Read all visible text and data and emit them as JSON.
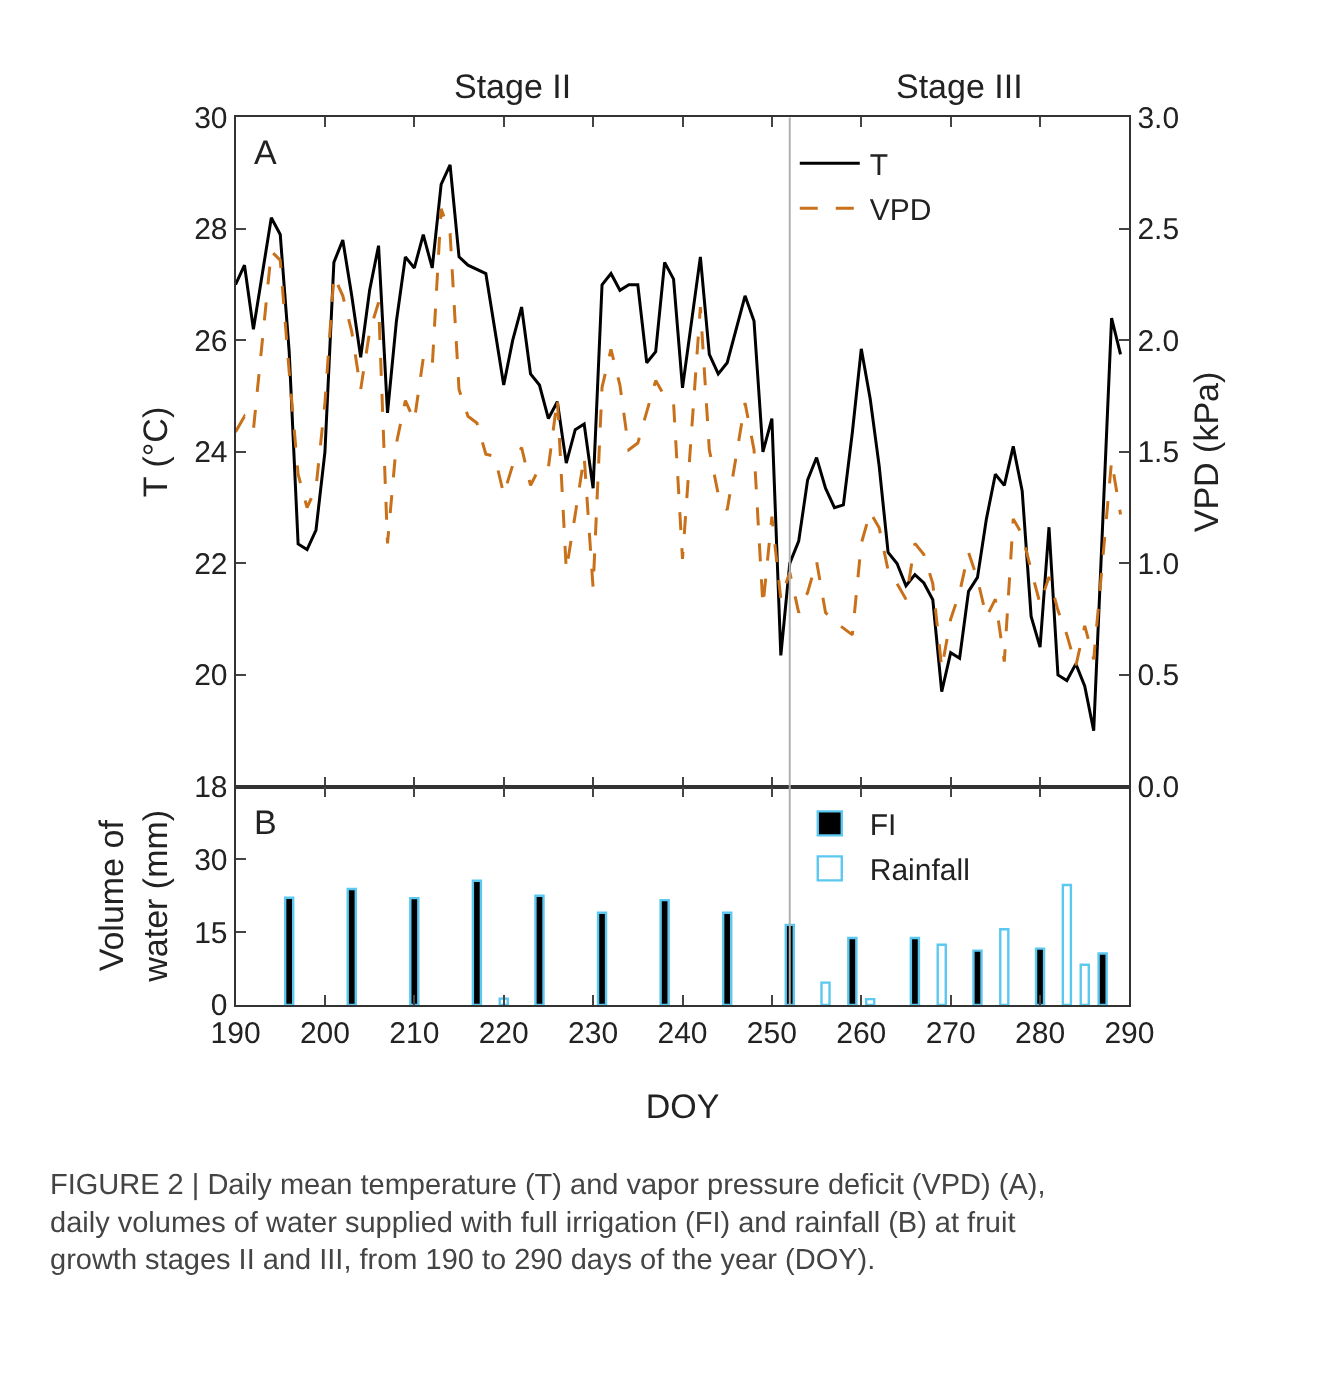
{
  "chart_data": [
    {
      "type": "line",
      "xlim": [
        190,
        290
      ],
      "xticks": [
        190,
        200,
        210,
        220,
        230,
        240,
        250,
        260,
        270,
        280,
        290
      ],
      "ylim": [
        18,
        30
      ],
      "yticks": [
        18,
        20,
        22,
        24,
        26,
        28,
        30
      ],
      "ylabel": "T (°C)",
      "y2lim": [
        0,
        3
      ],
      "y2ticks": [
        {
          "value": 0,
          "label": "0.0"
        },
        {
          "value": 0.5,
          "label": "0.5"
        },
        {
          "value": 1,
          "label": "1.0"
        },
        {
          "value": 1.5,
          "label": "1.5"
        },
        {
          "value": 2,
          "label": "2.0"
        },
        {
          "value": 2.5,
          "label": "2.5"
        },
        {
          "value": 3,
          "label": "3.0"
        }
      ],
      "y2label": "VPD (kPa)",
      "tick_labels": "y",
      "legend": "top right",
      "marker": "none",
      "annotations": [
        "A",
        "Stage II",
        "Stage III"
      ],
      "ref_lines": [
        {
          "axis": "x",
          "value": 252,
          "color": "#b0b0b0"
        }
      ],
      "series": [
        {
          "name": "T",
          "color": "#000000",
          "line_style": "solid",
          "x": [
            190,
            191,
            192,
            194,
            195,
            196,
            197,
            198,
            199,
            200,
            201,
            202,
            203,
            204,
            205,
            206,
            207,
            208,
            209,
            210,
            211,
            212,
            213,
            214,
            215,
            216,
            218,
            220,
            221,
            222,
            223,
            224,
            225,
            226,
            227,
            228,
            229,
            230,
            231,
            232,
            233,
            234,
            235,
            236,
            237,
            238,
            239,
            240,
            242,
            243,
            244,
            245,
            247,
            248,
            249,
            250,
            251,
            252,
            253,
            254,
            255,
            256,
            257,
            258,
            259,
            260,
            261,
            262,
            263,
            264,
            265,
            266,
            267,
            268,
            269,
            270,
            271,
            272,
            273,
            274,
            275,
            276,
            277,
            278,
            279,
            280,
            281,
            282,
            283,
            284,
            285,
            286,
            288,
            289
          ],
          "values": [
            27.0,
            27.35,
            26.2,
            28.2,
            27.9,
            25.8,
            22.35,
            22.25,
            22.6,
            24.0,
            27.4,
            27.8,
            26.8,
            25.7,
            26.9,
            27.7,
            24.7,
            26.35,
            27.5,
            27.3,
            27.9,
            27.3,
            28.8,
            29.15,
            27.5,
            27.35,
            27.2,
            25.2,
            26.0,
            26.6,
            25.4,
            25.2,
            24.6,
            24.9,
            23.8,
            24.4,
            24.5,
            23.35,
            27.0,
            27.2,
            26.9,
            27.0,
            27.0,
            25.6,
            25.8,
            27.4,
            27.1,
            25.15,
            27.5,
            25.75,
            25.4,
            25.6,
            26.8,
            26.35,
            24.0,
            24.6,
            20.35,
            22.0,
            22.4,
            23.5,
            23.9,
            23.35,
            23.0,
            23.05,
            24.35,
            25.85,
            24.95,
            23.75,
            22.2,
            22.0,
            21.6,
            21.8,
            21.65,
            21.35,
            19.7,
            20.4,
            20.3,
            21.5,
            21.75,
            22.8,
            23.6,
            23.4,
            24.1,
            23.3,
            21.05,
            20.5,
            22.65,
            20.0,
            19.9,
            20.2,
            19.8,
            19.0,
            26.4,
            25.75
          ]
        },
        {
          "name": "VPD",
          "color": "#c8711a",
          "line_style": "dashed",
          "axis": "y2",
          "x": [
            190,
            191,
            192,
            194,
            195,
            196,
            197,
            198,
            199,
            200,
            201,
            202,
            203,
            204,
            205,
            206,
            207,
            208,
            209,
            210,
            211,
            212,
            213,
            214,
            215,
            216,
            217,
            218,
            219,
            220,
            221,
            222,
            223,
            224,
            225,
            226,
            227,
            228,
            229,
            230,
            231,
            232,
            233,
            234,
            235,
            237,
            238,
            239,
            240,
            242,
            243,
            244,
            245,
            247,
            248,
            249,
            250,
            251,
            252,
            253,
            254,
            255,
            256,
            257,
            259,
            260,
            261,
            262,
            263,
            264,
            265,
            266,
            267,
            268,
            269,
            270,
            271,
            272,
            273,
            274,
            275,
            276,
            277,
            278,
            279,
            280,
            281,
            282,
            283,
            284,
            285,
            286,
            288,
            289
          ],
          "values": [
            1.59,
            1.66,
            1.6,
            2.4,
            2.36,
            1.86,
            1.4,
            1.25,
            1.34,
            1.72,
            2.29,
            2.2,
            2.04,
            1.78,
            2.04,
            2.17,
            1.09,
            1.54,
            1.73,
            1.64,
            1.92,
            1.88,
            2.59,
            2.48,
            1.78,
            1.66,
            1.63,
            1.49,
            1.48,
            1.31,
            1.44,
            1.52,
            1.35,
            1.43,
            1.43,
            1.74,
            0.97,
            1.22,
            1.48,
            0.89,
            1.79,
            1.96,
            1.8,
            1.51,
            1.54,
            1.82,
            1.75,
            1.72,
            1.02,
            2.15,
            1.51,
            1.31,
            1.24,
            1.72,
            1.51,
            0.81,
            1.21,
            0.84,
            0.96,
            0.78,
            0.87,
            1.01,
            0.78,
            0.74,
            0.68,
            1.09,
            1.23,
            1.16,
            0.97,
            0.91,
            0.84,
            1.09,
            1.04,
            0.91,
            0.53,
            0.75,
            0.87,
            1.05,
            0.93,
            0.76,
            0.84,
            0.56,
            1.2,
            1.13,
            0.97,
            0.82,
            0.94,
            0.79,
            0.68,
            0.54,
            0.72,
            0.57,
            1.46,
            1.22
          ]
        }
      ]
    },
    {
      "type": "bar",
      "xlim": [
        190,
        290
      ],
      "xticks": [
        190,
        200,
        210,
        220,
        230,
        240,
        250,
        260,
        270,
        280,
        290
      ],
      "ylim": [
        0,
        45
      ],
      "yticks": [
        0,
        15,
        30
      ],
      "xlabel": "DOY",
      "ylabel": "Volume of\nwater (mm)",
      "legend": "top right",
      "annotations": [
        "B",
        "FIGURE 2 | Daily mean temperature (T) and vapor pressure deficit (VPD) (A),\ndaily volumes of water supplied with full irrigation (FI) and rainfall (B) at fruit\ngrowth stages II and III, from 190 to 290 days of the year (DOY)."
      ],
      "ref_lines": [
        {
          "axis": "x",
          "value": 252,
          "color": "#b0b0b0"
        }
      ],
      "series": [
        {
          "name": "FI",
          "color": "#000000",
          "x": [
            196,
            203,
            210,
            217,
            224,
            231,
            238,
            245,
            252,
            259,
            266,
            273,
            280,
            287
          ],
          "values": [
            22.1,
            23.9,
            22,
            25.6,
            22.5,
            19,
            21.6,
            19,
            16.5,
            13.8,
            13.8,
            11.2,
            11.6,
            10.6
          ]
        },
        {
          "name": "Rainfall",
          "color": "#ffffff",
          "x": [
            220,
            256,
            261,
            269,
            276,
            283,
            285
          ],
          "values": [
            1.3,
            4.6,
            1.2,
            12.4,
            15.6,
            24.7,
            8.3
          ]
        }
      ]
    }
  ]
}
